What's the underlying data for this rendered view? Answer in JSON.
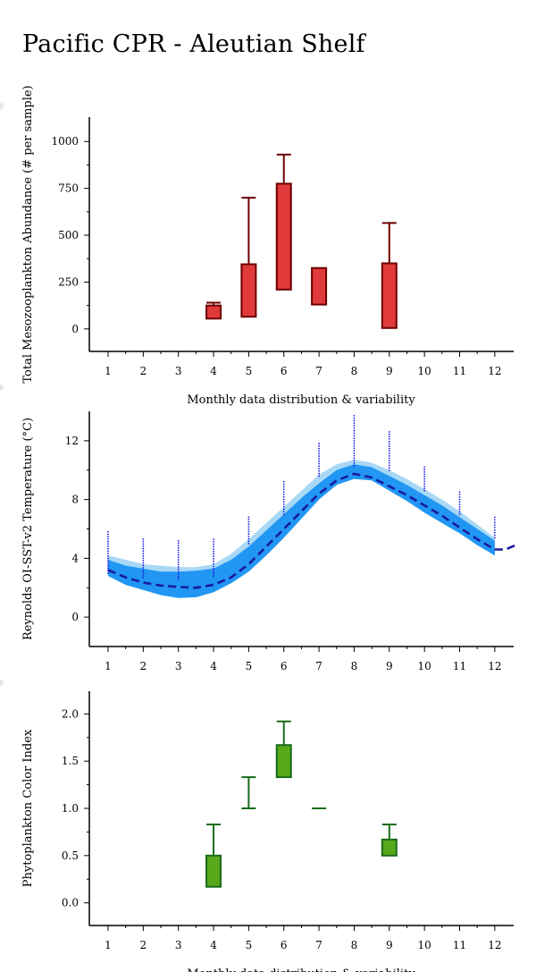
{
  "page": {
    "title": "Pacific CPR - Aleutian Shelf"
  },
  "chart_data": [
    {
      "type": "boxplot",
      "ylabel": "Total Mesozooplankton Abundance (# per sample)",
      "xlabel": "Monthly data distribution & variability",
      "categories": [
        "1",
        "2",
        "3",
        "4",
        "5",
        "6",
        "7",
        "8",
        "9",
        "10",
        "11",
        "12"
      ],
      "ylim": [
        -120,
        1130
      ],
      "yticks": [
        0,
        250,
        500,
        750,
        1000
      ],
      "box_color": "#e03a3a",
      "whisker_color": "#6b0000",
      "boxes": [
        {
          "month": 4,
          "q1": 55,
          "q3": 125,
          "whisker_high": 140
        },
        {
          "month": 5,
          "q1": 65,
          "q3": 345,
          "whisker_high": 700
        },
        {
          "month": 6,
          "q1": 210,
          "q3": 775,
          "whisker_high": 930
        },
        {
          "month": 7,
          "q1": 130,
          "q3": 325,
          "whisker_high": 325
        },
        {
          "month": 9,
          "q1": 5,
          "q3": 350,
          "whisker_high": 565
        }
      ]
    },
    {
      "type": "line",
      "ylabel": "Reynolds OI-SST-v2 Temperature (°C)",
      "xlabel": "",
      "categories": [
        "1",
        "2",
        "3",
        "4",
        "5",
        "6",
        "7",
        "8",
        "9",
        "10",
        "11",
        "12"
      ],
      "ylim": [
        -2,
        14
      ],
      "yticks": [
        0,
        4,
        8,
        12
      ],
      "mean_color": "#1a1aa0",
      "band_dark_color": "#2196f3",
      "band_light_color": "#a8d8f5",
      "dot_color": "#1a1ae6",
      "mean": [
        [
          1.0,
          3.2
        ],
        [
          1.5,
          2.7
        ],
        [
          2.0,
          2.35
        ],
        [
          2.5,
          2.15
        ],
        [
          3.0,
          2.05
        ],
        [
          3.5,
          2.0
        ],
        [
          4.0,
          2.2
        ],
        [
          4.5,
          2.7
        ],
        [
          5.0,
          3.6
        ],
        [
          5.5,
          4.8
        ],
        [
          6.0,
          6.0
        ],
        [
          6.5,
          7.2
        ],
        [
          7.0,
          8.4
        ],
        [
          7.5,
          9.3
        ],
        [
          8.0,
          9.75
        ],
        [
          8.5,
          9.5
        ],
        [
          9.0,
          8.9
        ],
        [
          9.5,
          8.3
        ],
        [
          10.0,
          7.6
        ],
        [
          10.5,
          6.9
        ],
        [
          11.0,
          6.1
        ],
        [
          11.5,
          5.3
        ],
        [
          12.0,
          4.6
        ],
        [
          12.3,
          4.6
        ],
        [
          12.6,
          4.9
        ]
      ],
      "band_dark": [
        [
          1.0,
          2.8,
          3.9
        ],
        [
          1.5,
          2.2,
          3.5
        ],
        [
          2.0,
          1.85,
          3.3
        ],
        [
          2.5,
          1.5,
          3.1
        ],
        [
          3.0,
          1.3,
          3.1
        ],
        [
          3.5,
          1.35,
          3.15
        ],
        [
          4.0,
          1.7,
          3.3
        ],
        [
          4.5,
          2.3,
          3.9
        ],
        [
          5.0,
          3.1,
          4.8
        ],
        [
          5.5,
          4.2,
          5.9
        ],
        [
          6.0,
          5.4,
          7.0
        ],
        [
          6.5,
          6.7,
          8.1
        ],
        [
          7.0,
          8.0,
          9.1
        ],
        [
          7.5,
          9.0,
          10.0
        ],
        [
          8.0,
          9.4,
          10.4
        ],
        [
          8.5,
          9.3,
          10.2
        ],
        [
          9.0,
          8.6,
          9.6
        ],
        [
          9.5,
          7.9,
          9.0
        ],
        [
          10.0,
          7.1,
          8.3
        ],
        [
          10.5,
          6.4,
          7.6
        ],
        [
          11.0,
          5.7,
          6.8
        ],
        [
          11.5,
          4.9,
          6.0
        ],
        [
          12.0,
          4.2,
          5.2
        ]
      ],
      "band_light": [
        [
          1.0,
          2.8,
          4.2
        ],
        [
          1.5,
          2.2,
          3.9
        ],
        [
          2.0,
          1.85,
          3.6
        ],
        [
          2.5,
          1.5,
          3.5
        ],
        [
          3.0,
          1.3,
          3.4
        ],
        [
          3.5,
          1.35,
          3.4
        ],
        [
          4.0,
          1.7,
          3.6
        ],
        [
          4.5,
          2.3,
          4.3
        ],
        [
          5.0,
          3.1,
          5.3
        ],
        [
          5.5,
          4.2,
          6.4
        ],
        [
          6.0,
          5.4,
          7.5
        ],
        [
          6.5,
          6.7,
          8.6
        ],
        [
          7.0,
          8.0,
          9.7
        ],
        [
          7.5,
          9.0,
          10.4
        ],
        [
          8.0,
          9.4,
          10.7
        ],
        [
          8.5,
          9.3,
          10.5
        ],
        [
          9.0,
          8.6,
          10.0
        ],
        [
          9.5,
          7.9,
          9.4
        ],
        [
          10.0,
          7.1,
          8.7
        ],
        [
          10.5,
          6.4,
          8.0
        ],
        [
          11.0,
          5.7,
          7.2
        ],
        [
          11.5,
          4.9,
          6.3
        ],
        [
          12.0,
          4.2,
          5.4
        ]
      ],
      "dot_columns": [
        {
          "month": 1,
          "ymin": 3.0,
          "ymax": 5.8
        },
        {
          "month": 2,
          "ymin": 2.7,
          "ymax": 5.3
        },
        {
          "month": 3,
          "ymin": 2.6,
          "ymax": 5.2
        },
        {
          "month": 4,
          "ymin": 2.8,
          "ymax": 5.3
        },
        {
          "month": 5,
          "ymin": 5.0,
          "ymax": 6.8
        },
        {
          "month": 6,
          "ymin": 7.0,
          "ymax": 9.2
        },
        {
          "month": 7,
          "ymin": 9.6,
          "ymax": 11.8
        },
        {
          "month": 8,
          "ymin": 10.3,
          "ymax": 13.7
        },
        {
          "month": 9,
          "ymin": 10.0,
          "ymax": 12.6
        },
        {
          "month": 10,
          "ymin": 8.6,
          "ymax": 10.2
        },
        {
          "month": 11,
          "ymin": 7.0,
          "ymax": 8.5
        },
        {
          "month": 12,
          "ymin": 5.4,
          "ymax": 6.8
        }
      ]
    },
    {
      "type": "boxplot",
      "ylabel": "Phytoplankton Color Index",
      "xlabel": "Monthly data distribution & variability",
      "categories": [
        "1",
        "2",
        "3",
        "4",
        "5",
        "6",
        "7",
        "8",
        "9",
        "10",
        "11",
        "12"
      ],
      "ylim": [
        -0.24,
        2.24
      ],
      "yticks": [
        "0.0",
        "0.5",
        "1.0",
        "1.5",
        "2.0"
      ],
      "box_color": "#59a81a",
      "whisker_color": "#1a6b1a",
      "boxes": [
        {
          "month": 4,
          "q1": 0.17,
          "q3": 0.5,
          "whisker_high": 0.83
        },
        {
          "month": 5,
          "q1": 1.0,
          "q3": 1.0,
          "whisker_high": 1.33
        },
        {
          "month": 6,
          "q1": 1.33,
          "q3": 1.67,
          "whisker_high": 1.92
        },
        {
          "month": 7,
          "q1": 1.0,
          "q3": 1.0,
          "whisker_high": 1.0
        },
        {
          "month": 9,
          "q1": 0.5,
          "q3": 0.67,
          "whisker_high": 0.83
        }
      ]
    }
  ]
}
